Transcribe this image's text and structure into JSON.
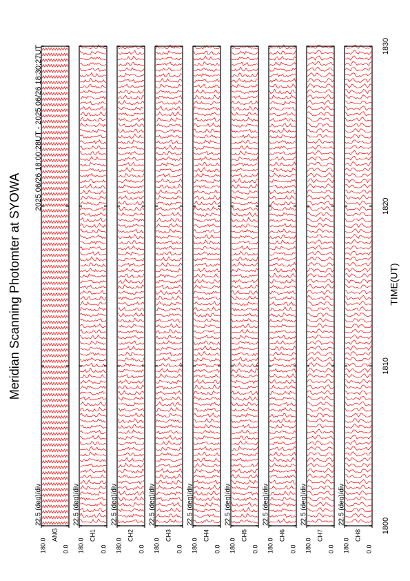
{
  "chart_data": {
    "type": "msp",
    "title": "Meridian Scanning Photomter at SYOWA",
    "subtitle": "2025 06/26 18:00:28UT - 2025 06/26 18:30:27UT",
    "xlabel": "TIME(UT)",
    "xlim": [
      1800,
      1830
    ],
    "xticks": [
      1800,
      1810,
      1820,
      1830
    ],
    "trace_color": "#ff0000",
    "panels": [
      {
        "label": "ANG",
        "scale": "22.5 (deg)/div",
        "ylim": [
          0,
          180
        ],
        "yticks": [
          {
            "value": 180,
            "label": "180.0"
          },
          {
            "value": 0,
            "label": "0.0"
          }
        ]
      },
      {
        "label": "CH1",
        "scale": "22.5 (deg)/div",
        "ylim": [
          0,
          180
        ],
        "yticks": [
          {
            "value": 180,
            "label": "180.0"
          },
          {
            "value": 0,
            "label": "0.0"
          }
        ]
      },
      {
        "label": "CH2",
        "scale": "22.5 (deg)/div",
        "ylim": [
          0,
          180
        ],
        "yticks": [
          {
            "value": 180,
            "label": "180.0"
          },
          {
            "value": 0,
            "label": "0.0"
          }
        ]
      },
      {
        "label": "CH3",
        "scale": "22.5 (deg)/div",
        "ylim": [
          0,
          180
        ],
        "yticks": [
          {
            "value": 180,
            "label": "180.0"
          },
          {
            "value": 0,
            "label": "0.0"
          }
        ]
      },
      {
        "label": "CH4",
        "scale": "22.5 (deg)/div",
        "ylim": [
          0,
          180
        ],
        "yticks": [
          {
            "value": 180,
            "label": "180.0"
          },
          {
            "value": 0,
            "label": "0.0"
          }
        ]
      },
      {
        "label": "CH5",
        "scale": "22.5 (deg)/div",
        "ylim": [
          0,
          180
        ],
        "yticks": [
          {
            "value": 180,
            "label": "180.0"
          },
          {
            "value": 0,
            "label": "0.0"
          }
        ]
      },
      {
        "label": "CH6",
        "scale": "22.5 (deg)/div",
        "ylim": [
          0,
          180
        ],
        "yticks": [
          {
            "value": 180,
            "label": "180.0"
          },
          {
            "value": 0,
            "label": "0.0"
          }
        ]
      },
      {
        "label": "CH7",
        "scale": "22.5 (deg)/div",
        "ylim": [
          0,
          180
        ],
        "yticks": [
          {
            "value": 180,
            "label": "180.0"
          },
          {
            "value": 0,
            "label": "0.0"
          }
        ]
      },
      {
        "label": "CH8",
        "scale": "22.5 (deg)/div",
        "ylim": [
          0,
          180
        ],
        "yticks": [
          {
            "value": 180,
            "label": "180.0"
          },
          {
            "value": 0,
            "label": "0.0"
          }
        ]
      }
    ]
  }
}
